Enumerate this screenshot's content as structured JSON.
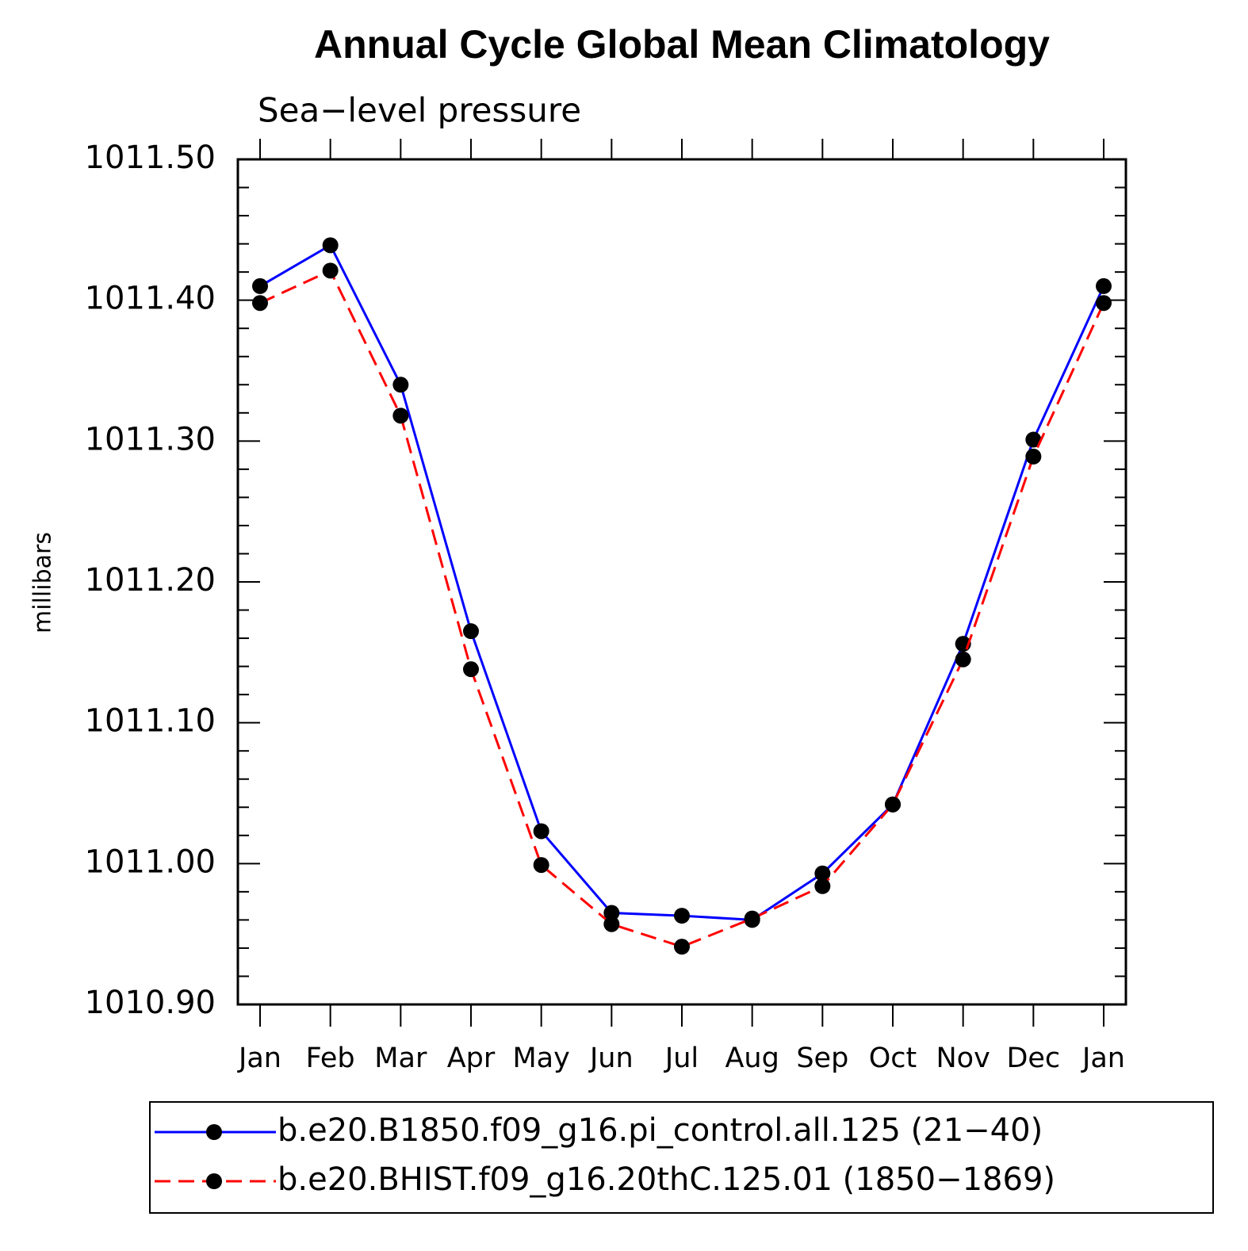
{
  "chart_data": {
    "type": "line",
    "title": "Annual Cycle Global Mean Climatology",
    "subtitle": "Sea−level pressure",
    "y_label": "millibars",
    "categories": [
      "Jan",
      "Feb",
      "Mar",
      "Apr",
      "May",
      "Jun",
      "Jul",
      "Aug",
      "Sep",
      "Oct",
      "Nov",
      "Dec",
      "Jan"
    ],
    "series": [
      {
        "name": "b.e20.B1850.f09_g16.pi_control.all.125 (21−40)",
        "color": "#0000ff",
        "linestyle": "solid",
        "values": [
          1011.41,
          1011.439,
          1011.34,
          1011.165,
          1011.023,
          1010.965,
          1010.963,
          1010.96,
          1010.993,
          1011.042,
          1011.156,
          1011.301,
          1011.41
        ]
      },
      {
        "name": "b.e20.BHIST.f09_g16.20thC.125.01 (1850−1869)",
        "color": "#ff0000",
        "linestyle": "dashed",
        "values": [
          1011.398,
          1011.421,
          1011.318,
          1011.138,
          1010.999,
          1010.957,
          1010.941,
          1010.961,
          1010.984,
          1011.042,
          1011.145,
          1011.289,
          1011.398
        ]
      }
    ],
    "marker_color": "#000000",
    "ylim": [
      1010.9,
      1011.5
    ],
    "yticks": [
      {
        "value": 1010.9,
        "label": "1010.90"
      },
      {
        "value": 1011.0,
        "label": "1011.00"
      },
      {
        "value": 1011.1,
        "label": "1011.10"
      },
      {
        "value": 1011.2,
        "label": "1011.20"
      },
      {
        "value": 1011.3,
        "label": "1011.30"
      },
      {
        "value": 1011.4,
        "label": "1011.40"
      },
      {
        "value": 1011.5,
        "label": "1011.50"
      }
    ],
    "grid": false,
    "legend": "bottom"
  }
}
